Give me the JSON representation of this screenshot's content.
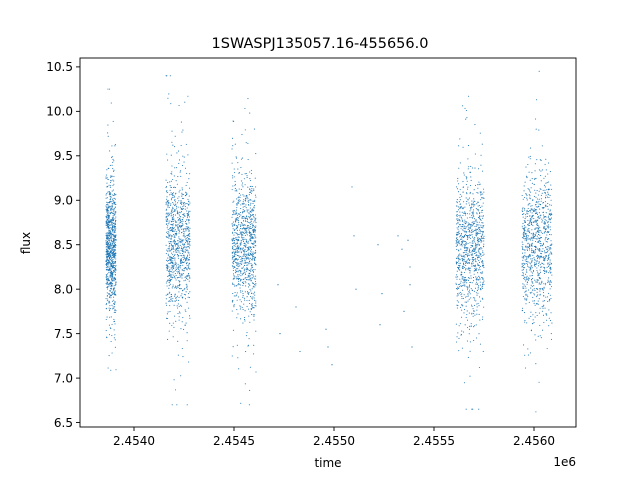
{
  "chart_data": {
    "type": "scatter",
    "title": "1SWASPJ135057.16-455656.0",
    "xlabel": "time",
    "ylabel": "flux",
    "x_offset_label": "1e6",
    "xlim": [
      2.45373,
      2.45621
    ],
    "ylim": [
      6.45,
      10.6
    ],
    "xticks": [
      2.454,
      2.4545,
      2.455,
      2.4555,
      2.456
    ],
    "xtick_labels": [
      "2.4540",
      "2.4545",
      "2.4550",
      "2.4555",
      "2.4560"
    ],
    "yticks": [
      6.5,
      7.0,
      7.5,
      8.0,
      8.5,
      9.0,
      9.5,
      10.0,
      10.5
    ],
    "ytick_labels": [
      "6.5",
      "7.0",
      "7.5",
      "8.0",
      "8.5",
      "9.0",
      "9.5",
      "10.0",
      "10.5"
    ],
    "grid": false,
    "marker_color": "#1f77b4",
    "series": [
      {
        "observing_seasons": [
          {
            "x_start": 2.45386,
            "x_end": 2.45391,
            "y_center": 8.5,
            "y_spread": 0.35,
            "y_min": 7.05,
            "y_max": 10.25
          },
          {
            "x_start": 2.45416,
            "x_end": 2.45428,
            "y_center": 8.5,
            "y_spread": 0.42,
            "y_min": 6.7,
            "y_max": 10.4
          },
          {
            "x_start": 2.45449,
            "x_end": 2.45461,
            "y_center": 8.5,
            "y_spread": 0.4,
            "y_min": 6.7,
            "y_max": 10.4
          },
          {
            "x_start": 2.45561,
            "x_end": 2.45575,
            "y_center": 8.45,
            "y_spread": 0.4,
            "y_min": 6.65,
            "y_max": 10.4
          },
          {
            "x_start": 2.45594,
            "x_end": 2.45609,
            "y_center": 8.5,
            "y_spread": 0.4,
            "y_min": 6.62,
            "y_max": 10.45
          }
        ],
        "sparse_points": [
          [
            2.45472,
            8.05
          ],
          [
            2.45473,
            7.5
          ],
          [
            2.45481,
            7.8
          ],
          [
            2.45483,
            7.3
          ],
          [
            2.45496,
            7.55
          ],
          [
            2.45497,
            7.35
          ],
          [
            2.45499,
            7.15
          ],
          [
            2.45509,
            9.15
          ],
          [
            2.4551,
            8.6
          ],
          [
            2.45511,
            8.0
          ],
          [
            2.45522,
            8.5
          ],
          [
            2.45523,
            7.6
          ],
          [
            2.45524,
            7.95
          ],
          [
            2.45532,
            8.6
          ],
          [
            2.45534,
            8.45
          ],
          [
            2.45535,
            7.75
          ],
          [
            2.45537,
            8.55
          ],
          [
            2.45538,
            8.25
          ],
          [
            2.45539,
            7.35
          ],
          [
            2.45538,
            8.05
          ]
        ]
      }
    ]
  }
}
